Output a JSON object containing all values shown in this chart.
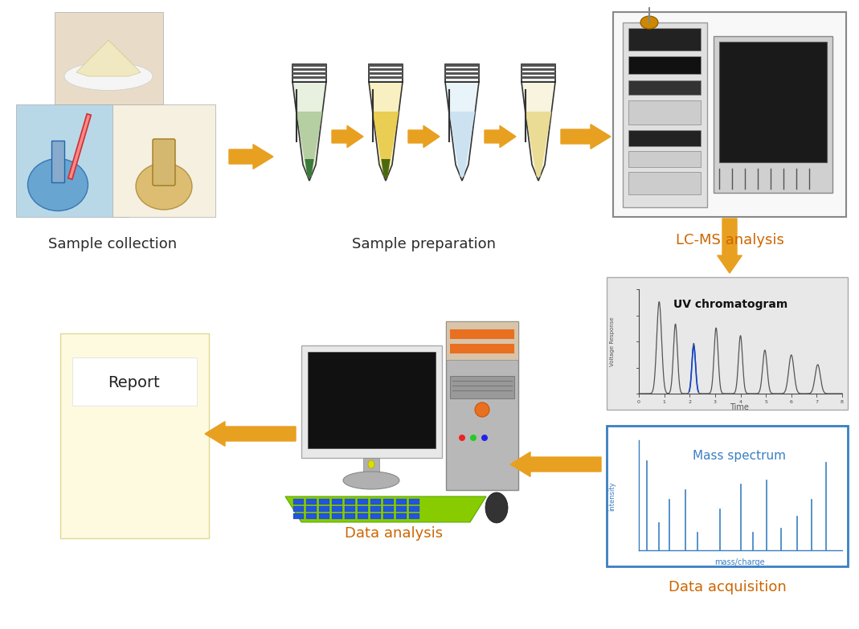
{
  "background_color": "#ffffff",
  "arrow_color": "#E8A020",
  "labels": {
    "sample_collection": "Sample collection",
    "sample_preparation": "Sample preparation",
    "lcms_analysis": "LC-MS analysis",
    "data_acquisition": "Data acquisition",
    "data_analysis": "Data analysis",
    "report": "Report",
    "uv_chromatogram": "UV chromatogram",
    "mass_spectrum": "Mass spectrum",
    "voltage_response": "Voltage Response",
    "time": "Time",
    "intensity": "intensity",
    "mass_charge": "mass/charge"
  },
  "label_color": "#2a2a2a",
  "blue_color": "#3a7fc1",
  "mass_spectrum_border": "#3a7fc1",
  "uv_box_bg": "#eeeeee",
  "mass_box_bg": "#ffffff",
  "report_bg": "#FEFAE0",
  "lcms_box_border": "#888888"
}
